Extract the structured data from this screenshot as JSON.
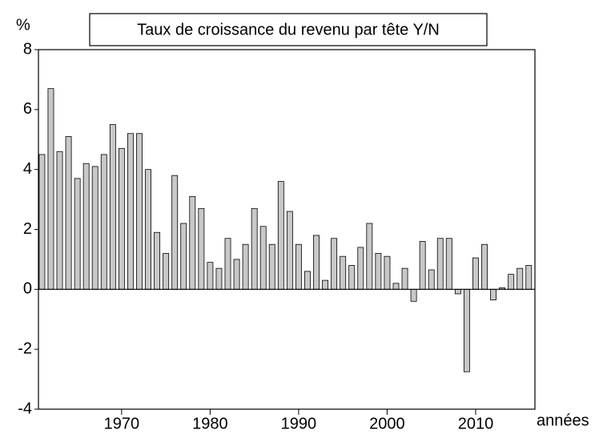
{
  "chart_data": {
    "type": "bar",
    "title": "Taux de croissance du revenu par tête Y/N",
    "y_label": "%",
    "x_label": "années",
    "x": [
      1961,
      1962,
      1963,
      1964,
      1965,
      1966,
      1967,
      1968,
      1969,
      1970,
      1971,
      1972,
      1973,
      1974,
      1975,
      1976,
      1977,
      1978,
      1979,
      1980,
      1981,
      1982,
      1983,
      1984,
      1985,
      1986,
      1987,
      1988,
      1989,
      1990,
      1991,
      1992,
      1993,
      1994,
      1995,
      1996,
      1997,
      1998,
      1999,
      2000,
      2001,
      2002,
      2003,
      2004,
      2005,
      2006,
      2007,
      2008,
      2009,
      2010,
      2011,
      2012,
      2013,
      2014,
      2015,
      2016
    ],
    "values": [
      4.5,
      6.7,
      4.6,
      5.1,
      3.7,
      4.2,
      4.1,
      4.5,
      5.5,
      4.7,
      5.2,
      5.2,
      4.0,
      1.9,
      1.2,
      3.8,
      2.2,
      3.1,
      2.7,
      0.9,
      0.7,
      1.7,
      1.0,
      1.5,
      2.7,
      2.1,
      1.5,
      3.6,
      2.6,
      1.5,
      0.6,
      1.8,
      0.3,
      1.7,
      1.1,
      0.8,
      1.4,
      2.2,
      1.2,
      1.1,
      0.2,
      0.7,
      -0.4,
      1.6,
      0.65,
      1.7,
      1.7,
      -0.15,
      -2.75,
      1.05,
      1.5,
      -0.35,
      0.05,
      0.5,
      0.7,
      0.8
    ],
    "color": "#c8c8c8",
    "xlim": [
      1960.6,
      2016.7
    ],
    "xticks": [
      1970,
      1980,
      1990,
      2000,
      2010
    ],
    "ylim": [
      -4,
      8
    ],
    "yticks": [
      -4,
      -2,
      0,
      2,
      4,
      6,
      8
    ],
    "grid": false
  }
}
